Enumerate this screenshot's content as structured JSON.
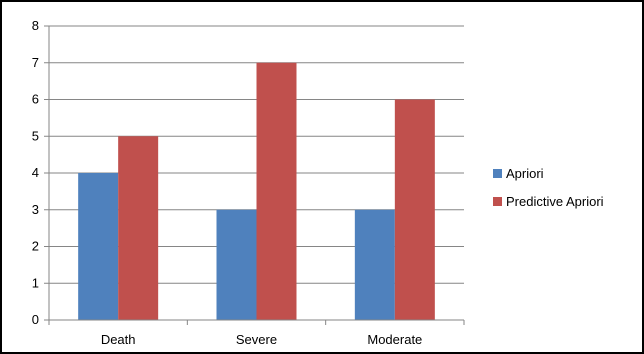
{
  "chart_data": {
    "type": "bar",
    "categories": [
      "Death",
      "Severe",
      "Moderate"
    ],
    "series": [
      {
        "name": "Apriori",
        "values": [
          4,
          3,
          3
        ],
        "color": "#4f81bd"
      },
      {
        "name": "Predictive Apriori",
        "values": [
          5,
          7,
          6
        ],
        "color": "#c0504d"
      }
    ],
    "ylim": [
      0,
      8
    ],
    "yticks": [
      0,
      1,
      2,
      3,
      4,
      5,
      6,
      7,
      8
    ],
    "grid": true,
    "legend_position": "right",
    "title": "",
    "xlabel": "",
    "ylabel": ""
  }
}
